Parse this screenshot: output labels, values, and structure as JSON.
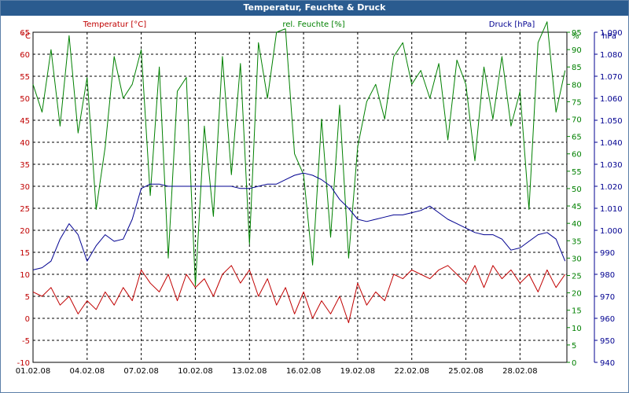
{
  "window": {
    "title": "Temperatur, Feuchte & Druck"
  },
  "colors": {
    "temperature": "#c00000",
    "humidity": "#008000",
    "pressure": "#000090",
    "grid": "#000000",
    "title_bg": "#2a5b8f"
  },
  "chart_data": {
    "type": "line",
    "title": "Temperatur, Feuchte & Druck",
    "x_start_day": 1,
    "x_end_day": 30.6,
    "x_tick_labels": [
      "01.02.08",
      "04.02.08",
      "07.02.08",
      "10.02.08",
      "13.02.08",
      "16.02.08",
      "19.02.08",
      "22.02.08",
      "25.02.08",
      "28.02.08"
    ],
    "axes": {
      "temperature": {
        "label": "Temperatur [°C]",
        "unit": "°C",
        "min": -10,
        "max": 65,
        "ticks": [
          -10,
          -5,
          0,
          5,
          10,
          15,
          20,
          25,
          30,
          35,
          40,
          45,
          50,
          55,
          60,
          65
        ]
      },
      "humidity": {
        "label": "rel. Feuchte [%]",
        "unit": "%",
        "min": 0,
        "max": 95,
        "ticks": [
          0,
          5,
          10,
          15,
          20,
          25,
          30,
          35,
          40,
          45,
          50,
          55,
          60,
          65,
          70,
          75,
          80,
          85,
          90,
          95
        ]
      },
      "pressure": {
        "label": "Druck [hPa]",
        "unit": "hPa",
        "min": 940,
        "max": 1090,
        "ticks": [
          "940",
          "950",
          "960",
          "970",
          "980",
          "990",
          "1.000",
          "1.010",
          "1.020",
          "1.030",
          "1.040",
          "1.050",
          "1.060",
          "1.070",
          "1.080",
          "1.090"
        ]
      }
    },
    "series": [
      {
        "name": "Temperatur [°C]",
        "axis": "temperature",
        "x": [
          1,
          1.5,
          2,
          2.5,
          3,
          3.5,
          4,
          4.5,
          5,
          5.5,
          6,
          6.5,
          7,
          7.5,
          8,
          8.5,
          9,
          9.5,
          10,
          10.5,
          11,
          11.5,
          12,
          12.5,
          13,
          13.5,
          14,
          14.5,
          15,
          15.5,
          16,
          16.5,
          17,
          17.5,
          18,
          18.5,
          19,
          19.5,
          20,
          20.5,
          21,
          21.5,
          22,
          22.5,
          23,
          23.5,
          24,
          24.5,
          25,
          25.5,
          26,
          26.5,
          27,
          27.5,
          28,
          28.5,
          29,
          29.5,
          30,
          30.5
        ],
        "y": [
          6,
          5,
          7,
          3,
          5,
          1,
          4,
          2,
          6,
          3,
          7,
          4,
          11,
          8,
          6,
          10,
          4,
          10,
          7,
          9,
          5,
          10,
          12,
          8,
          11,
          5,
          9,
          3,
          7,
          1,
          6,
          0,
          4,
          1,
          5,
          -1,
          8,
          3,
          6,
          4,
          10,
          9,
          11,
          10,
          9,
          11,
          12,
          10,
          8,
          12,
          7,
          12,
          9,
          11,
          8,
          10,
          6,
          11,
          7,
          10
        ]
      },
      {
        "name": "rel. Feuchte [%]",
        "axis": "humidity",
        "x": [
          1,
          1.5,
          2,
          2.5,
          3,
          3.5,
          4,
          4.5,
          5,
          5.5,
          6,
          6.5,
          7,
          7.5,
          8,
          8.5,
          9,
          9.5,
          10,
          10.5,
          11,
          11.5,
          12,
          12.5,
          13,
          13.5,
          14,
          14.5,
          15,
          15.5,
          16,
          16.5,
          17,
          17.5,
          18,
          18.5,
          19,
          19.5,
          20,
          20.5,
          21,
          21.5,
          22,
          22.5,
          23,
          23.5,
          24,
          24.5,
          25,
          25.5,
          26,
          26.5,
          27,
          27.5,
          28,
          28.5,
          29,
          29.5,
          30,
          30.5
        ],
        "y": [
          80,
          72,
          90,
          68,
          94,
          66,
          82,
          44,
          62,
          88,
          76,
          80,
          90,
          48,
          85,
          30,
          78,
          82,
          22,
          68,
          42,
          88,
          54,
          86,
          34,
          92,
          76,
          95,
          96,
          60,
          54,
          28,
          70,
          36,
          74,
          30,
          62,
          75,
          80,
          70,
          88,
          92,
          80,
          84,
          76,
          86,
          64,
          87,
          80,
          58,
          85,
          70,
          88,
          68,
          78,
          44,
          92,
          98,
          72,
          84
        ]
      },
      {
        "name": "Druck [hPa]",
        "axis": "pressure",
        "x": [
          1,
          1.5,
          2,
          2.5,
          3,
          3.5,
          4,
          4.5,
          5,
          5.5,
          6,
          6.5,
          7,
          7.5,
          8,
          8.5,
          9,
          9.5,
          10,
          10.5,
          11,
          11.5,
          12,
          12.5,
          13,
          13.5,
          14,
          14.5,
          15,
          15.5,
          16,
          16.5,
          17,
          17.5,
          18,
          18.5,
          19,
          19.5,
          20,
          20.5,
          21,
          21.5,
          22,
          22.5,
          23,
          23.5,
          24,
          24.5,
          25,
          25.5,
          26,
          26.5,
          27,
          27.5,
          28,
          28.5,
          29,
          29.5,
          30,
          30.5
        ],
        "y": [
          982,
          983,
          986,
          996,
          1003,
          998,
          986,
          993,
          998,
          995,
          996,
          1005,
          1019,
          1021,
          1021,
          1020,
          1020,
          1020,
          1020,
          1020,
          1020,
          1020,
          1020,
          1019,
          1019,
          1020,
          1021,
          1021,
          1023,
          1025,
          1026,
          1025,
          1023,
          1020,
          1014,
          1010,
          1005,
          1004,
          1005,
          1006,
          1007,
          1007,
          1008,
          1009,
          1011,
          1008,
          1005,
          1003,
          1001,
          999,
          998,
          998,
          996,
          991,
          992,
          995,
          998,
          999,
          996,
          986
        ]
      }
    ]
  }
}
